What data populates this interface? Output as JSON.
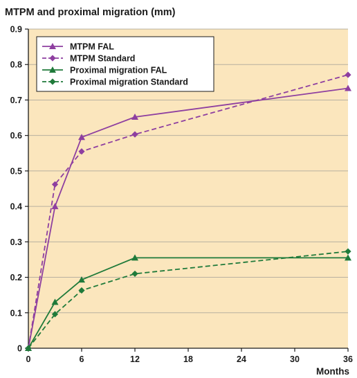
{
  "chart_data": {
    "type": "line",
    "title": "MTPM and proximal migration (mm)",
    "xlabel": "Months",
    "ylabel": "",
    "xlim": [
      0,
      36
    ],
    "ylim": [
      0,
      0.9
    ],
    "xticks": [
      "0",
      "6",
      "12",
      "18",
      "24",
      "30",
      "36"
    ],
    "yticks": [
      "0",
      "0.1",
      "0.2",
      "0.3",
      "0.4",
      "0.5",
      "0.6",
      "0.7",
      "0.8",
      "0.9"
    ],
    "grid": "horizontal",
    "background": "#fbe6bd",
    "legend_position": "top-left",
    "series": [
      {
        "name": "MTPM FAL",
        "color": "#8e3fa0",
        "dash": "solid",
        "marker": "triangle",
        "x": [
          0,
          3,
          6,
          12,
          36
        ],
        "y": [
          0,
          0.4,
          0.595,
          0.652,
          0.733
        ]
      },
      {
        "name": "MTPM Standard",
        "color": "#8e3fa0",
        "dash": "dashed",
        "marker": "diamond",
        "x": [
          0,
          3,
          6,
          12,
          36
        ],
        "y": [
          0,
          0.462,
          0.555,
          0.603,
          0.771
        ]
      },
      {
        "name": "Proximal migration FAL",
        "color": "#1f7a3a",
        "dash": "solid",
        "marker": "triangle",
        "x": [
          0,
          3,
          6,
          12,
          36
        ],
        "y": [
          0,
          0.13,
          0.193,
          0.255,
          0.255
        ]
      },
      {
        "name": "Proximal migration Standard",
        "color": "#1f7a3a",
        "dash": "dashed",
        "marker": "diamond",
        "x": [
          0,
          3,
          6,
          12,
          36
        ],
        "y": [
          0,
          0.096,
          0.163,
          0.21,
          0.273
        ]
      }
    ]
  }
}
